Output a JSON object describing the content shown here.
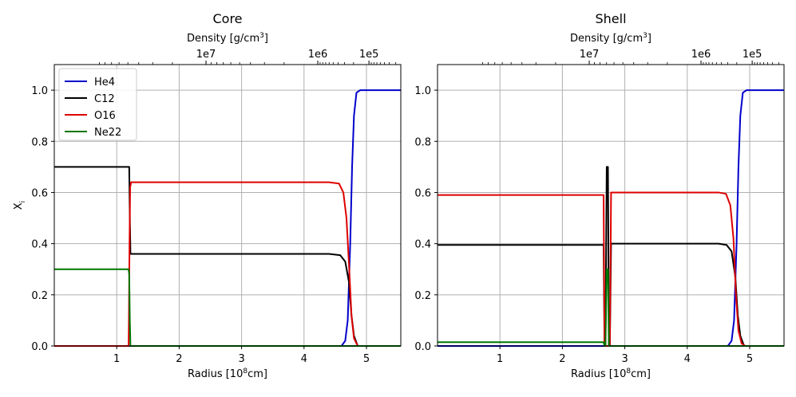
{
  "chart_data": [
    {
      "type": "line",
      "title": "Core",
      "xlabel": "Radius [10",
      "xlabel_sup": "8",
      "xlabel_tail": "cm]",
      "ylabel": "X",
      "ylabel_sub": "i",
      "top_xlabel": "Density [g/cm",
      "top_xlabel_sup": "3",
      "top_xlabel_tail": "]",
      "xlim": [
        0,
        5.55
      ],
      "ylim": [
        0,
        1.1
      ],
      "grid": true,
      "legend": "top-left",
      "xticks": [
        1,
        2,
        3,
        4,
        5
      ],
      "xtick_labels": [
        "1",
        "2",
        "3",
        "4",
        "5"
      ],
      "yticks": [
        0.0,
        0.2,
        0.4,
        0.6,
        0.8,
        1.0
      ],
      "ytick_labels": [
        "0.0",
        "0.2",
        "0.4",
        "0.6",
        "0.8",
        "1.0"
      ],
      "top_ticks": [
        {
          "x": 2.43,
          "label": "1e7"
        },
        {
          "x": 4.22,
          "label": "1e6"
        },
        {
          "x": 5.04,
          "label": "1e5"
        }
      ],
      "series": [
        {
          "name": "He4",
          "color": "#0000cc",
          "x": [
            0,
            4.6,
            4.66,
            4.7,
            4.74,
            4.77,
            4.8,
            4.84,
            4.9,
            5.55
          ],
          "y": [
            0,
            0,
            0.02,
            0.1,
            0.4,
            0.7,
            0.9,
            0.99,
            1.0,
            1.0
          ]
        },
        {
          "name": "C12",
          "color": "#000000",
          "x": [
            0,
            1.2,
            1.21,
            1.22,
            1.3,
            4.4,
            4.58,
            4.66,
            4.72,
            4.76,
            4.8,
            4.86,
            5.55
          ],
          "y": [
            0.7,
            0.7,
            0.5,
            0.36,
            0.36,
            0.36,
            0.355,
            0.33,
            0.25,
            0.12,
            0.04,
            0.0,
            0.0
          ]
        },
        {
          "name": "O16",
          "color": "#dd0000",
          "x": [
            0,
            1.19,
            1.195,
            1.205,
            1.215,
            1.23,
            1.3,
            4.4,
            4.56,
            4.63,
            4.68,
            4.72,
            4.76,
            4.8,
            4.86,
            5.55
          ],
          "y": [
            0,
            0,
            0.1,
            0.4,
            0.62,
            0.64,
            0.64,
            0.64,
            0.635,
            0.6,
            0.5,
            0.32,
            0.12,
            0.03,
            0.0,
            0.0
          ]
        },
        {
          "name": "Ne22",
          "color": "#007700",
          "x": [
            0,
            1.19,
            1.2,
            1.21,
            1.22,
            5.55
          ],
          "y": [
            0.3,
            0.3,
            0.28,
            0.1,
            0.0,
            0.0
          ]
        }
      ]
    },
    {
      "type": "line",
      "title": "Shell",
      "xlabel": "Radius [10",
      "xlabel_sup": "8",
      "xlabel_tail": "cm]",
      "top_xlabel": "Density [g/cm",
      "top_xlabel_sup": "3",
      "top_xlabel_tail": "]",
      "xlim": [
        0,
        5.55
      ],
      "ylim": [
        0,
        1.1
      ],
      "grid": true,
      "xticks": [
        1,
        2,
        3,
        4,
        5
      ],
      "xtick_labels": [
        "1",
        "2",
        "3",
        "4",
        "5"
      ],
      "yticks": [
        0.0,
        0.2,
        0.4,
        0.6,
        0.8,
        1.0
      ],
      "ytick_labels": [
        "0.0",
        "0.2",
        "0.4",
        "0.6",
        "0.8",
        "1.0"
      ],
      "top_ticks": [
        {
          "x": 2.43,
          "label": "1e7"
        },
        {
          "x": 4.22,
          "label": "1e6"
        },
        {
          "x": 5.04,
          "label": "1e5"
        }
      ],
      "series": [
        {
          "name": "He4",
          "color": "#0000cc",
          "x": [
            0,
            4.65,
            4.71,
            4.75,
            4.79,
            4.82,
            4.85,
            4.89,
            4.95,
            5.55
          ],
          "y": [
            0,
            0,
            0.02,
            0.1,
            0.4,
            0.7,
            0.9,
            0.99,
            1.0,
            1.0
          ]
        },
        {
          "name": "C12",
          "color": "#000000",
          "x": [
            0,
            2.66,
            2.675,
            2.69,
            2.71,
            2.73,
            2.745,
            2.76,
            2.78,
            4.5,
            4.63,
            4.71,
            4.77,
            4.81,
            4.85,
            4.91,
            5.55
          ],
          "y": [
            0.395,
            0.395,
            0.0,
            0.0,
            0.7,
            0.7,
            0.0,
            0.0,
            0.4,
            0.4,
            0.395,
            0.37,
            0.27,
            0.12,
            0.04,
            0.0,
            0.0
          ]
        },
        {
          "name": "O16",
          "color": "#dd0000",
          "x": [
            0,
            2.66,
            2.675,
            2.69,
            2.71,
            2.73,
            2.745,
            2.76,
            2.78,
            4.5,
            4.62,
            4.69,
            4.74,
            4.78,
            4.82,
            4.87,
            4.93,
            5.55
          ],
          "y": [
            0.59,
            0.59,
            0.0,
            0.0,
            0.0,
            0.0,
            0.0,
            0.0,
            0.6,
            0.6,
            0.595,
            0.55,
            0.42,
            0.2,
            0.06,
            0.01,
            0.0,
            0.0
          ]
        },
        {
          "name": "Ne22",
          "color": "#007700",
          "x": [
            0,
            2.66,
            2.675,
            2.69,
            2.71,
            2.73,
            2.745,
            2.76,
            5.55
          ],
          "y": [
            0.015,
            0.015,
            0.0,
            0.0,
            0.3,
            0.3,
            0.0,
            0.0,
            0.0
          ]
        }
      ]
    }
  ]
}
